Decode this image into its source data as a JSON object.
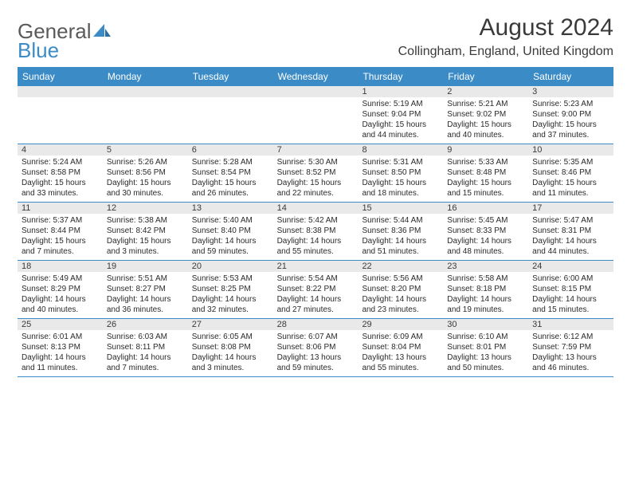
{
  "brand": {
    "part1": "General",
    "part2": "Blue",
    "icon_color": "#3b8bc6"
  },
  "title": "August 2024",
  "location": "Collingham, England, United Kingdom",
  "colors": {
    "header_bg": "#3b8bc6",
    "band_bg": "#e9e9e9",
    "rule": "#3b8bc6",
    "text": "#2a2a2a",
    "title_text": "#3a3a3a"
  },
  "days_of_week": [
    "Sunday",
    "Monday",
    "Tuesday",
    "Wednesday",
    "Thursday",
    "Friday",
    "Saturday"
  ],
  "weeks": [
    [
      null,
      null,
      null,
      null,
      {
        "n": "1",
        "sr": "5:19 AM",
        "ss": "9:04 PM",
        "dl": "15 hours and 44 minutes."
      },
      {
        "n": "2",
        "sr": "5:21 AM",
        "ss": "9:02 PM",
        "dl": "15 hours and 40 minutes."
      },
      {
        "n": "3",
        "sr": "5:23 AM",
        "ss": "9:00 PM",
        "dl": "15 hours and 37 minutes."
      }
    ],
    [
      {
        "n": "4",
        "sr": "5:24 AM",
        "ss": "8:58 PM",
        "dl": "15 hours and 33 minutes."
      },
      {
        "n": "5",
        "sr": "5:26 AM",
        "ss": "8:56 PM",
        "dl": "15 hours and 30 minutes."
      },
      {
        "n": "6",
        "sr": "5:28 AM",
        "ss": "8:54 PM",
        "dl": "15 hours and 26 minutes."
      },
      {
        "n": "7",
        "sr": "5:30 AM",
        "ss": "8:52 PM",
        "dl": "15 hours and 22 minutes."
      },
      {
        "n": "8",
        "sr": "5:31 AM",
        "ss": "8:50 PM",
        "dl": "15 hours and 18 minutes."
      },
      {
        "n": "9",
        "sr": "5:33 AM",
        "ss": "8:48 PM",
        "dl": "15 hours and 15 minutes."
      },
      {
        "n": "10",
        "sr": "5:35 AM",
        "ss": "8:46 PM",
        "dl": "15 hours and 11 minutes."
      }
    ],
    [
      {
        "n": "11",
        "sr": "5:37 AM",
        "ss": "8:44 PM",
        "dl": "15 hours and 7 minutes."
      },
      {
        "n": "12",
        "sr": "5:38 AM",
        "ss": "8:42 PM",
        "dl": "15 hours and 3 minutes."
      },
      {
        "n": "13",
        "sr": "5:40 AM",
        "ss": "8:40 PM",
        "dl": "14 hours and 59 minutes."
      },
      {
        "n": "14",
        "sr": "5:42 AM",
        "ss": "8:38 PM",
        "dl": "14 hours and 55 minutes."
      },
      {
        "n": "15",
        "sr": "5:44 AM",
        "ss": "8:36 PM",
        "dl": "14 hours and 51 minutes."
      },
      {
        "n": "16",
        "sr": "5:45 AM",
        "ss": "8:33 PM",
        "dl": "14 hours and 48 minutes."
      },
      {
        "n": "17",
        "sr": "5:47 AM",
        "ss": "8:31 PM",
        "dl": "14 hours and 44 minutes."
      }
    ],
    [
      {
        "n": "18",
        "sr": "5:49 AM",
        "ss": "8:29 PM",
        "dl": "14 hours and 40 minutes."
      },
      {
        "n": "19",
        "sr": "5:51 AM",
        "ss": "8:27 PM",
        "dl": "14 hours and 36 minutes."
      },
      {
        "n": "20",
        "sr": "5:53 AM",
        "ss": "8:25 PM",
        "dl": "14 hours and 32 minutes."
      },
      {
        "n": "21",
        "sr": "5:54 AM",
        "ss": "8:22 PM",
        "dl": "14 hours and 27 minutes."
      },
      {
        "n": "22",
        "sr": "5:56 AM",
        "ss": "8:20 PM",
        "dl": "14 hours and 23 minutes."
      },
      {
        "n": "23",
        "sr": "5:58 AM",
        "ss": "8:18 PM",
        "dl": "14 hours and 19 minutes."
      },
      {
        "n": "24",
        "sr": "6:00 AM",
        "ss": "8:15 PM",
        "dl": "14 hours and 15 minutes."
      }
    ],
    [
      {
        "n": "25",
        "sr": "6:01 AM",
        "ss": "8:13 PM",
        "dl": "14 hours and 11 minutes."
      },
      {
        "n": "26",
        "sr": "6:03 AM",
        "ss": "8:11 PM",
        "dl": "14 hours and 7 minutes."
      },
      {
        "n": "27",
        "sr": "6:05 AM",
        "ss": "8:08 PM",
        "dl": "14 hours and 3 minutes."
      },
      {
        "n": "28",
        "sr": "6:07 AM",
        "ss": "8:06 PM",
        "dl": "13 hours and 59 minutes."
      },
      {
        "n": "29",
        "sr": "6:09 AM",
        "ss": "8:04 PM",
        "dl": "13 hours and 55 minutes."
      },
      {
        "n": "30",
        "sr": "6:10 AM",
        "ss": "8:01 PM",
        "dl": "13 hours and 50 minutes."
      },
      {
        "n": "31",
        "sr": "6:12 AM",
        "ss": "7:59 PM",
        "dl": "13 hours and 46 minutes."
      }
    ]
  ],
  "labels": {
    "sunrise": "Sunrise:",
    "sunset": "Sunset:",
    "daylight": "Daylight:"
  }
}
